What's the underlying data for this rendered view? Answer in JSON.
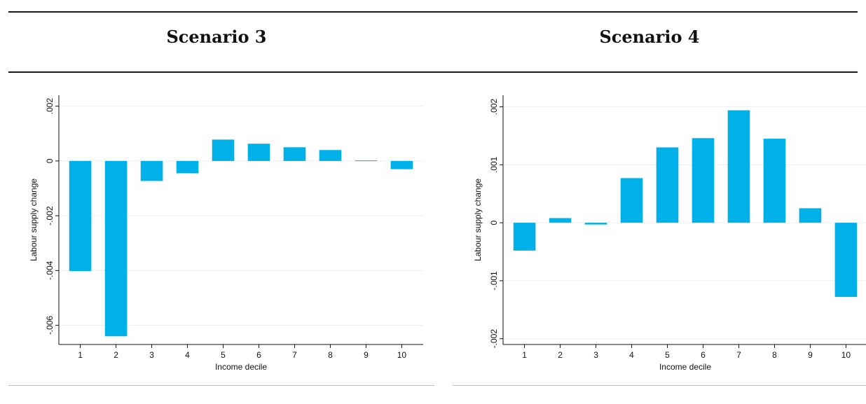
{
  "headings": [
    "Scenario 3",
    "Scenario 4"
  ],
  "chart_data": [
    {
      "type": "bar",
      "title": "Scenario 3",
      "xlabel": "Income decile",
      "ylabel": "Labour supply change",
      "categories": [
        "1",
        "2",
        "3",
        "4",
        "5",
        "6",
        "7",
        "8",
        "9",
        "10"
      ],
      "values": [
        -0.00402,
        -0.0064,
        -0.00073,
        -0.00045,
        0.00078,
        0.00063,
        0.0005,
        0.0004,
        2e-05,
        -0.0003
      ],
      "ylim": [
        -0.0067,
        0.0024
      ],
      "yticks": [
        -0.006,
        -0.004,
        -0.002,
        0,
        0.002
      ],
      "ytick_labels": [
        "-.006",
        "-.004",
        "-.002",
        "0",
        ".002"
      ],
      "grid": true,
      "bar_color": "#00b0e8"
    },
    {
      "type": "bar",
      "title": "Scenario 4",
      "xlabel": "Income decile",
      "ylabel": "Labour supply change",
      "categories": [
        "1",
        "2",
        "3",
        "4",
        "5",
        "6",
        "7",
        "8",
        "9",
        "10"
      ],
      "values": [
        -0.00048,
        8e-05,
        -3e-05,
        0.00077,
        0.0013,
        0.00146,
        0.00194,
        0.00145,
        0.00025,
        -0.00128
      ],
      "ylim": [
        -0.0021,
        0.0022
      ],
      "yticks": [
        -0.002,
        -0.001,
        0,
        0.001,
        0.002
      ],
      "ytick_labels": [
        "-.002",
        "-.001",
        "0",
        ".001",
        ".002"
      ],
      "grid": true,
      "bar_color": "#00b0e8"
    }
  ]
}
